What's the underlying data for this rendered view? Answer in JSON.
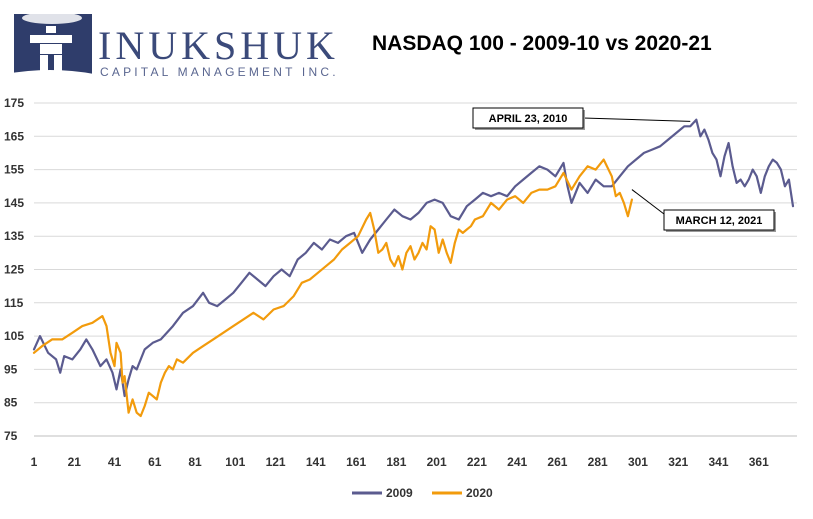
{
  "logo": {
    "word": "INUKSHUK",
    "tagline": "CAPITAL MANAGEMENT INC."
  },
  "colors": {
    "s2009": "#5b5b8f",
    "s2020": "#f29b0c",
    "logo": "#3b4a7a"
  },
  "chart_data": {
    "type": "line",
    "title": "NASDAQ 100 - 2009-10 vs 2020-21",
    "xlabel": "",
    "ylabel": "",
    "xlim": [
      1,
      380
    ],
    "ylim": [
      75,
      175
    ],
    "yticks": [
      75,
      85,
      95,
      105,
      115,
      125,
      135,
      145,
      155,
      165,
      175
    ],
    "xticks": [
      1,
      21,
      41,
      61,
      81,
      101,
      121,
      141,
      161,
      181,
      201,
      221,
      241,
      261,
      281,
      301,
      321,
      341,
      361
    ],
    "grid": true,
    "legend": "bottom-center",
    "series": [
      {
        "name": "2009",
        "color": "#5b5b8f",
        "x": [
          1,
          4,
          8,
          12,
          14,
          16,
          20,
          24,
          27,
          30,
          34,
          37,
          40,
          42,
          44,
          46,
          48,
          50,
          52,
          56,
          60,
          64,
          70,
          75,
          80,
          85,
          88,
          92,
          96,
          100,
          104,
          108,
          112,
          116,
          120,
          124,
          128,
          132,
          136,
          140,
          144,
          148,
          152,
          156,
          160,
          164,
          168,
          172,
          176,
          180,
          184,
          188,
          192,
          196,
          200,
          204,
          208,
          212,
          216,
          220,
          224,
          228,
          232,
          236,
          240,
          244,
          248,
          252,
          256,
          260,
          264,
          266,
          268,
          272,
          276,
          280,
          284,
          288,
          292,
          296,
          300,
          304,
          308,
          312,
          316,
          320,
          324,
          327,
          330,
          332,
          334,
          336,
          338,
          340,
          342,
          344,
          346,
          348,
          350,
          352,
          354,
          356,
          358,
          360,
          362,
          364,
          366,
          368,
          370,
          372,
          374,
          376,
          378
        ],
        "values": [
          101,
          105,
          100,
          98,
          94,
          99,
          98,
          101,
          104,
          101,
          96,
          98,
          94,
          89,
          95,
          87,
          92,
          96,
          95,
          101,
          103,
          104,
          108,
          112,
          114,
          118,
          115,
          114,
          116,
          118,
          121,
          124,
          122,
          120,
          123,
          125,
          123,
          128,
          130,
          133,
          131,
          134,
          133,
          135,
          136,
          130,
          134,
          137,
          140,
          143,
          141,
          140,
          142,
          145,
          146,
          145,
          141,
          140,
          144,
          146,
          148,
          147,
          148,
          147,
          150,
          152,
          154,
          156,
          155,
          153,
          157,
          150,
          145,
          151,
          148,
          152,
          150,
          150,
          153,
          156,
          158,
          160,
          161,
          162,
          164,
          166,
          168,
          168,
          170,
          165,
          167,
          164,
          160,
          158,
          153,
          159,
          163,
          156,
          151,
          152,
          150,
          152,
          155,
          153,
          148,
          153,
          156,
          158,
          157,
          155,
          150,
          152,
          144
        ]
      },
      {
        "name": "2020",
        "color": "#f29b0c",
        "x": [
          1,
          5,
          10,
          15,
          20,
          25,
          30,
          35,
          37,
          39,
          41,
          42,
          44,
          45,
          46,
          48,
          50,
          52,
          54,
          56,
          58,
          60,
          62,
          64,
          66,
          68,
          70,
          72,
          75,
          80,
          85,
          90,
          95,
          100,
          105,
          110,
          115,
          120,
          125,
          130,
          134,
          138,
          142,
          146,
          150,
          154,
          158,
          162,
          166,
          168,
          170,
          172,
          174,
          176,
          178,
          180,
          182,
          184,
          186,
          188,
          190,
          192,
          194,
          196,
          198,
          200,
          202,
          204,
          206,
          208,
          210,
          212,
          214,
          216,
          218,
          220,
          224,
          228,
          232,
          236,
          240,
          244,
          248,
          252,
          256,
          260,
          264,
          268,
          272,
          276,
          280,
          284,
          288,
          290,
          292,
          294,
          296,
          298
        ],
        "values": [
          100,
          102,
          104,
          104,
          106,
          108,
          109,
          111,
          108,
          100,
          96,
          103,
          100,
          91,
          93,
          82,
          86,
          82,
          81,
          84,
          88,
          87,
          86,
          91,
          94,
          96,
          95,
          98,
          97,
          100,
          102,
          104,
          106,
          108,
          110,
          112,
          110,
          113,
          114,
          117,
          121,
          122,
          124,
          126,
          128,
          131,
          133,
          135,
          140,
          142,
          137,
          130,
          131,
          133,
          128,
          126,
          129,
          125,
          130,
          132,
          128,
          130,
          133,
          131,
          138,
          137,
          130,
          134,
          130,
          127,
          133,
          137,
          136,
          137,
          138,
          140,
          141,
          145,
          143,
          146,
          147,
          145,
          148,
          149,
          149,
          150,
          154,
          149,
          153,
          156,
          155,
          158,
          153,
          147,
          148,
          145,
          141,
          146
        ]
      }
    ],
    "annotations": [
      {
        "label": "APRIL 23, 2010",
        "x": 327,
        "y": 169.5,
        "placement": "left"
      },
      {
        "label": "MARCH 12, 2021",
        "x": 298,
        "y": 149,
        "placement": "right"
      }
    ]
  }
}
